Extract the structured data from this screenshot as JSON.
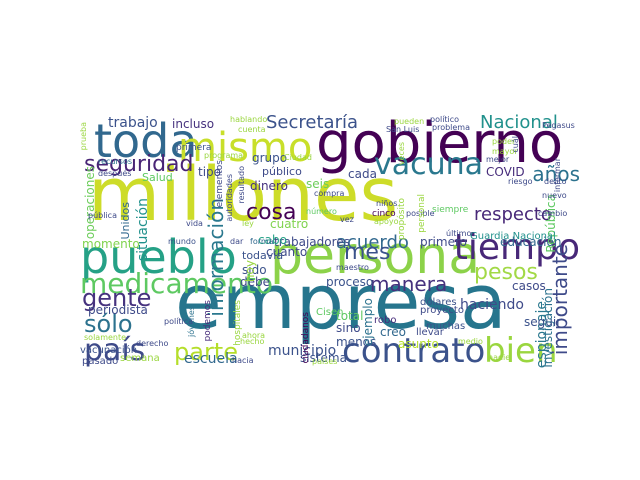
{
  "colors": {
    "background": "#ffffff",
    "dark_purple": "#440154",
    "indigo": "#3b528b",
    "teal": "#21918c",
    "sea_green": "#25a186",
    "green": "#5ec962",
    "lime": "#a2d946",
    "yellow": "#c8df2a"
  },
  "words": [
    {
      "text": "millones",
      "color": "#cddc29"
    },
    {
      "text": "empresa",
      "color": "#26758d"
    },
    {
      "text": "gobierno",
      "color": "#440154"
    },
    {
      "text": "persona",
      "color": "#8cd249"
    },
    {
      "text": "pueblo",
      "color": "#25a186"
    },
    {
      "text": "toda",
      "color": "#31688e"
    },
    {
      "text": "mismo",
      "color": "#c8df2a"
    },
    {
      "text": "contrato",
      "color": "#3b528b"
    },
    {
      "text": "bien",
      "color": "#9ad63f"
    },
    {
      "text": "tiempo",
      "color": "#482878"
    },
    {
      "text": "vacuna",
      "color": "#2a788e"
    },
    {
      "text": "medicamento",
      "color": "#5ec962"
    },
    {
      "text": "país",
      "color": "#3e4a89"
    },
    {
      "text": "parte",
      "color": "#b5de2b"
    },
    {
      "text": "gente",
      "color": "#46327e"
    },
    {
      "text": "sólo",
      "color": "#2c728e"
    },
    {
      "text": "Secretaría",
      "color": "#3b528b"
    },
    {
      "text": "Nacional",
      "color": "#21918c"
    },
    {
      "text": "seguridad",
      "color": "#482475"
    },
    {
      "text": "importante",
      "color": "#3e4a89"
    },
    {
      "text": "información",
      "color": "#2a788e"
    },
    {
      "text": "respecto",
      "color": "#482878"
    },
    {
      "text": "manera",
      "color": "#46327e"
    },
    {
      "text": "cosa",
      "color": "#440154"
    },
    {
      "text": "acuerdo",
      "color": "#31688e"
    },
    {
      "text": "pesos",
      "color": "#a2d946"
    },
    {
      "text": "mes",
      "color": "#3b528b"
    },
    {
      "text": "años",
      "color": "#2c728e"
    },
    {
      "text": "trabajo",
      "color": "#3b528b"
    },
    {
      "text": "incluso",
      "color": "#46327e"
    },
    {
      "text": "situación",
      "color": "#21918c"
    },
    {
      "text": "municipio",
      "color": "#3b528b"
    },
    {
      "text": "escuela",
      "color": "#31688e"
    },
    {
      "text": "haciendo",
      "color": "#3e4a89"
    },
    {
      "text": "trabajadores",
      "color": "#3e4a89"
    },
    {
      "text": "proceso",
      "color": "#3b528b"
    },
    {
      "text": "dinero",
      "color": "#46327e"
    },
    {
      "text": "sistema",
      "color": "#3b528b"
    },
    {
      "text": "espionaje",
      "color": "#2a788e"
    },
    {
      "text": "investigación",
      "color": "#2c728e"
    },
    {
      "text": "seguir",
      "color": "#3b528b"
    },
    {
      "text": "cada",
      "color": "#3e4a89"
    },
    {
      "text": "cabo",
      "color": "#25a186"
    },
    {
      "text": "cuanto",
      "color": "#3e4a89"
    },
    {
      "text": "cuatro",
      "color": "#7fd34e"
    },
    {
      "text": "seis",
      "color": "#6ccd5a"
    },
    {
      "text": "grupo",
      "color": "#3b528b"
    },
    {
      "text": "tipo",
      "color": "#3e4a89"
    },
    {
      "text": "primero",
      "color": "#3e4a89"
    },
    {
      "text": "educación",
      "color": "#31688e"
    },
    {
      "text": "periodista",
      "color": "#3e4a89"
    },
    {
      "text": "operaciones",
      "color": "#6ccd5a"
    },
    {
      "text": "Salud",
      "color": "#5ec962"
    },
    {
      "text": "COVID",
      "color": "#472d7b"
    },
    {
      "text": "República",
      "color": "#5ec962"
    },
    {
      "text": "público",
      "color": "#3e4a89"
    },
    {
      "text": "debe",
      "color": "#3e4a89"
    },
    {
      "text": "sido",
      "color": "#3b528b"
    },
    {
      "text": "hoy",
      "color": "#9ad63f"
    },
    {
      "text": "momento",
      "color": "#7fd34e"
    },
    {
      "text": "Unidos",
      "color": "#31688e"
    },
    {
      "text": "menos",
      "color": "#3b528b"
    },
    {
      "text": "total",
      "color": "#5ec962"
    },
    {
      "text": "sino",
      "color": "#3e4a89"
    },
    {
      "text": "creo",
      "color": "#31688e"
    },
    {
      "text": "asunto",
      "color": "#b5de2b"
    },
    {
      "text": "casos",
      "color": "#3e4a89"
    },
    {
      "text": "ejemplo",
      "color": "#2c728e"
    },
    {
      "text": "Guardia Nacional",
      "color": "#21918c"
    },
    {
      "text": "todavía",
      "color": "#3b528b"
    },
    {
      "text": "semana",
      "color": "#9ad63f"
    },
    {
      "text": "vacunación",
      "color": "#3b528b"
    },
    {
      "text": "pasado",
      "color": "#3e4a89"
    },
    {
      "text": "hacia",
      "color": "#3e4a89"
    },
    {
      "text": "países",
      "color": "#9ad63f"
    },
    {
      "text": "muchas",
      "color": "#3b528b"
    },
    {
      "text": "llevar",
      "color": "#3e4a89"
    },
    {
      "text": "robo",
      "color": "#472d7b"
    },
    {
      "text": "dólares",
      "color": "#3b528b"
    },
    {
      "text": "proyecto",
      "color": "#3e4a89"
    },
    {
      "text": "ciudadanos",
      "color": "#440154"
    },
    {
      "text": "Cisen",
      "color": "#5ec962"
    },
    {
      "text": "podemos",
      "color": "#472d7b"
    },
    {
      "text": "jóvenes",
      "color": "#2c728e"
    },
    {
      "text": "hospitales",
      "color": "#9ad63f"
    },
    {
      "text": "política",
      "color": "#3e4a89"
    },
    {
      "text": "derecho",
      "color": "#3e4a89"
    },
    {
      "text": "solamente",
      "color": "#9ad63f"
    },
    {
      "text": "pública",
      "color": "#3e4a89"
    },
    {
      "text": "mundo",
      "color": "#3b528b"
    },
    {
      "text": "dar",
      "color": "#3e4a89"
    },
    {
      "text": "forma",
      "color": "#31688e"
    },
    {
      "text": "maestro",
      "color": "#3e4a89"
    },
    {
      "text": "vida",
      "color": "#3e4a89"
    },
    {
      "text": "ley",
      "color": "#9ad63f"
    },
    {
      "text": "elementos",
      "color": "#3e4a89"
    },
    {
      "text": "autoridades",
      "color": "#3e4a89"
    },
    {
      "text": "resultado",
      "color": "#3e4a89"
    },
    {
      "text": "primera",
      "color": "#3b528b"
    },
    {
      "text": "programa",
      "color": "#9ad63f"
    },
    {
      "text": "después",
      "color": "#3e4a89"
    },
    {
      "text": "recursos",
      "color": "#2c728e"
    },
    {
      "text": "prueba",
      "color": "#9ad63f"
    },
    {
      "text": "hablando",
      "color": "#9ad63f"
    },
    {
      "text": "cuenta",
      "color": "#9ad63f"
    },
    {
      "text": "Ciudad",
      "color": "#9ad63f"
    },
    {
      "text": "compra",
      "color": "#3e4a89"
    },
    {
      "text": "número",
      "color": "#5ec962"
    },
    {
      "text": "vez",
      "color": "#3e4a89"
    },
    {
      "text": "cinco",
      "color": "#440154"
    },
    {
      "text": "apoyo",
      "color": "#9ad63f"
    },
    {
      "text": "niños",
      "color": "#3e4a89"
    },
    {
      "text": "propósito",
      "color": "#9ad63f"
    },
    {
      "text": "posible",
      "color": "#3e4a89"
    },
    {
      "text": "personal",
      "color": "#9ad63f"
    },
    {
      "text": "siempre",
      "color": "#5ec962"
    },
    {
      "text": "último",
      "color": "#3e4a89"
    },
    {
      "text": "medio",
      "color": "#9ad63f"
    },
    {
      "text": "nadie",
      "color": "#9ad63f"
    },
    {
      "text": "cambio",
      "color": "#3e4a89"
    },
    {
      "text": "nuevo",
      "color": "#3e4a89"
    },
    {
      "text": "delito",
      "color": "#3e4a89"
    },
    {
      "text": "riesgo",
      "color": "#3e4a89"
    },
    {
      "text": "informar",
      "color": "#3e4a89"
    },
    {
      "text": "Pegasus",
      "color": "#3e4a89"
    },
    {
      "text": "pueden",
      "color": "#9ad63f"
    },
    {
      "text": "político",
      "color": "#3e4a89"
    },
    {
      "text": "problema",
      "color": "#3e4a89"
    },
    {
      "text": "San Luis",
      "color": "#3e4a89"
    },
    {
      "text": "poder",
      "color": "#9ad63f"
    },
    {
      "text": "mayor",
      "color": "#9ad63f"
    },
    {
      "text": "mejor",
      "color": "#3e4a89"
    },
    {
      "text": "cuál",
      "color": "#3e4a89"
    },
    {
      "text": "veces",
      "color": "#9ad63f"
    },
    {
      "text": "hecho",
      "color": "#9ad63f"
    },
    {
      "text": "ahora",
      "color": "#9ad63f"
    }
  ]
}
